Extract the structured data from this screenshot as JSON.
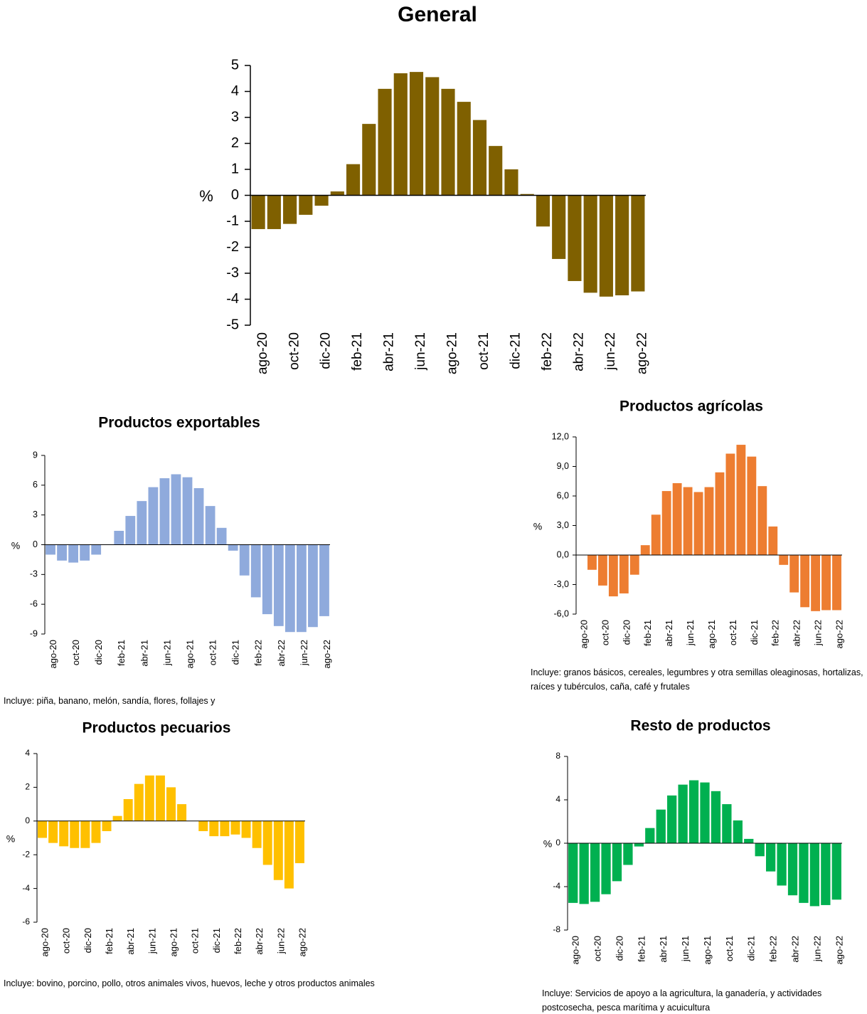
{
  "chart_data": [
    {
      "type": "bar",
      "title": "General",
      "ylabel": "%",
      "color": "#7f6000",
      "categories": [
        "ago-20",
        null,
        "oct-20",
        null,
        "dic-20",
        null,
        "feb-21",
        null,
        "abr-21",
        null,
        "jun-21",
        null,
        "ago-21",
        null,
        "oct-21",
        null,
        "dic-21",
        null,
        "feb-22",
        null,
        "abr-22",
        null,
        "jun-22",
        null,
        "ago-22"
      ],
      "values": [
        -1.3,
        -1.3,
        -1.1,
        -0.75,
        -0.4,
        0.15,
        1.2,
        2.75,
        4.1,
        4.7,
        4.75,
        4.55,
        4.1,
        3.6,
        2.9,
        1.9,
        1.0,
        0.05,
        -1.2,
        -2.45,
        -3.3,
        -3.75,
        -3.9,
        -3.85,
        -3.7
      ],
      "ylim": [
        -5,
        5
      ],
      "yticks": [
        -5,
        -4,
        -3,
        -2,
        -1,
        0,
        1,
        2,
        3,
        4,
        5
      ]
    },
    {
      "type": "bar",
      "title": "Productos exportables",
      "ylabel": "%",
      "color": "#8faadc",
      "categories": [
        "ago-20",
        null,
        "oct-20",
        null,
        "dic-20",
        null,
        "feb-21",
        null,
        "abr-21",
        null,
        "jun-21",
        null,
        "ago-21",
        null,
        "oct-21",
        null,
        "dic-21",
        null,
        "feb-22",
        null,
        "abr-22",
        null,
        "jun-22",
        null,
        "ago-22"
      ],
      "values": [
        -1.0,
        -1.6,
        -1.8,
        -1.6,
        -1.0,
        0,
        1.4,
        2.9,
        4.4,
        5.8,
        6.7,
        7.1,
        6.8,
        5.7,
        3.9,
        1.7,
        -0.6,
        -3.1,
        -5.3,
        -7.0,
        -8.2,
        -8.8,
        -8.8,
        -8.3,
        -7.2
      ],
      "ylim": [
        -9,
        9
      ],
      "yticks": [
        -9,
        -6,
        -3,
        0,
        3,
        6,
        9
      ],
      "note": "Incluye: piña, banano, melón, sandía, flores, follajes y"
    },
    {
      "type": "bar",
      "title": "Productos agrícolas",
      "ylabel": "%",
      "color": "#ed7d31",
      "categories": [
        "ago-20",
        null,
        "oct-20",
        null,
        "dic-20",
        null,
        "feb-21",
        null,
        "abr-21",
        null,
        "jun-21",
        null,
        "ago-21",
        null,
        "oct-21",
        null,
        "dic-21",
        null,
        "feb-22",
        null,
        "abr-22",
        null,
        "jun-22",
        null,
        "ago-22"
      ],
      "values": [
        0,
        -1.5,
        -3.1,
        -4.2,
        -3.9,
        -2.0,
        1.0,
        4.1,
        6.5,
        7.3,
        6.9,
        6.4,
        6.9,
        8.4,
        10.3,
        11.2,
        10.0,
        7.0,
        2.9,
        -1.0,
        -3.8,
        -5.3,
        -5.7,
        -5.6,
        -5.6
      ],
      "ylim": [
        -6,
        12
      ],
      "yticks": [
        {
          "value": -6,
          "label": "-6,0"
        },
        {
          "value": -3,
          "label": "-3,0"
        },
        {
          "value": 0,
          "label": "0,0"
        },
        {
          "value": 3,
          "label": "3,0"
        },
        {
          "value": 6,
          "label": "6,0"
        },
        {
          "value": 9,
          "label": "9,0"
        },
        {
          "value": 12,
          "label": "12,0"
        }
      ],
      "note": "Incluye: granos básicos, cereales, legumbres y otra semillas oleaginosas, hortalizas, raíces y tubérculos, caña, café y frutales"
    },
    {
      "type": "bar",
      "title": "Productos pecuarios",
      "ylabel": "%",
      "color": "#ffc000",
      "categories": [
        "ago-20",
        null,
        "oct-20",
        null,
        "dic-20",
        null,
        "feb-21",
        null,
        "abr-21",
        null,
        "jun-21",
        null,
        "ago-21",
        null,
        "oct-21",
        null,
        "dic-21",
        null,
        "feb-22",
        null,
        "abr-22",
        null,
        "jun-22",
        null,
        "ago-22"
      ],
      "values": [
        -1.0,
        -1.3,
        -1.5,
        -1.6,
        -1.6,
        -1.3,
        -0.6,
        0.3,
        1.3,
        2.2,
        2.7,
        2.7,
        2.0,
        1.0,
        0,
        -0.6,
        -0.9,
        -0.9,
        -0.8,
        -1.0,
        -1.6,
        -2.6,
        -3.5,
        -4.0,
        -2.5
      ],
      "ylim": [
        -6,
        4
      ],
      "yticks": [
        -6,
        -4,
        -2,
        0,
        2,
        4
      ],
      "note": "Incluye: bovino, porcino, pollo, otros animales vivos, huevos, leche y otros productos animales"
    },
    {
      "type": "bar",
      "title": "Resto de productos",
      "ylabel": "%",
      "color": "#00b050",
      "categories": [
        "ago-20",
        null,
        "oct-20",
        null,
        "dic-20",
        null,
        "feb-21",
        null,
        "abr-21",
        null,
        "jun-21",
        null,
        "ago-21",
        null,
        "oct-21",
        null,
        "dic-21",
        null,
        "feb-22",
        null,
        "abr-22",
        null,
        "jun-22",
        null,
        "ago-22"
      ],
      "values": [
        -5.5,
        -5.6,
        -5.4,
        -4.7,
        -3.5,
        -2.0,
        -0.3,
        1.4,
        3.1,
        4.4,
        5.4,
        5.8,
        5.6,
        4.8,
        3.6,
        2.1,
        0.4,
        -1.2,
        -2.6,
        -3.9,
        -4.8,
        -5.5,
        -5.8,
        -5.7,
        -5.2
      ],
      "ylim": [
        -8,
        8
      ],
      "yticks": [
        -8,
        -4,
        0,
        4,
        8
      ],
      "note": "Incluye: Servicios de apoyo a la agricultura, la ganadería, y actividades postcosecha, pesca marítima y acuicultura"
    }
  ]
}
